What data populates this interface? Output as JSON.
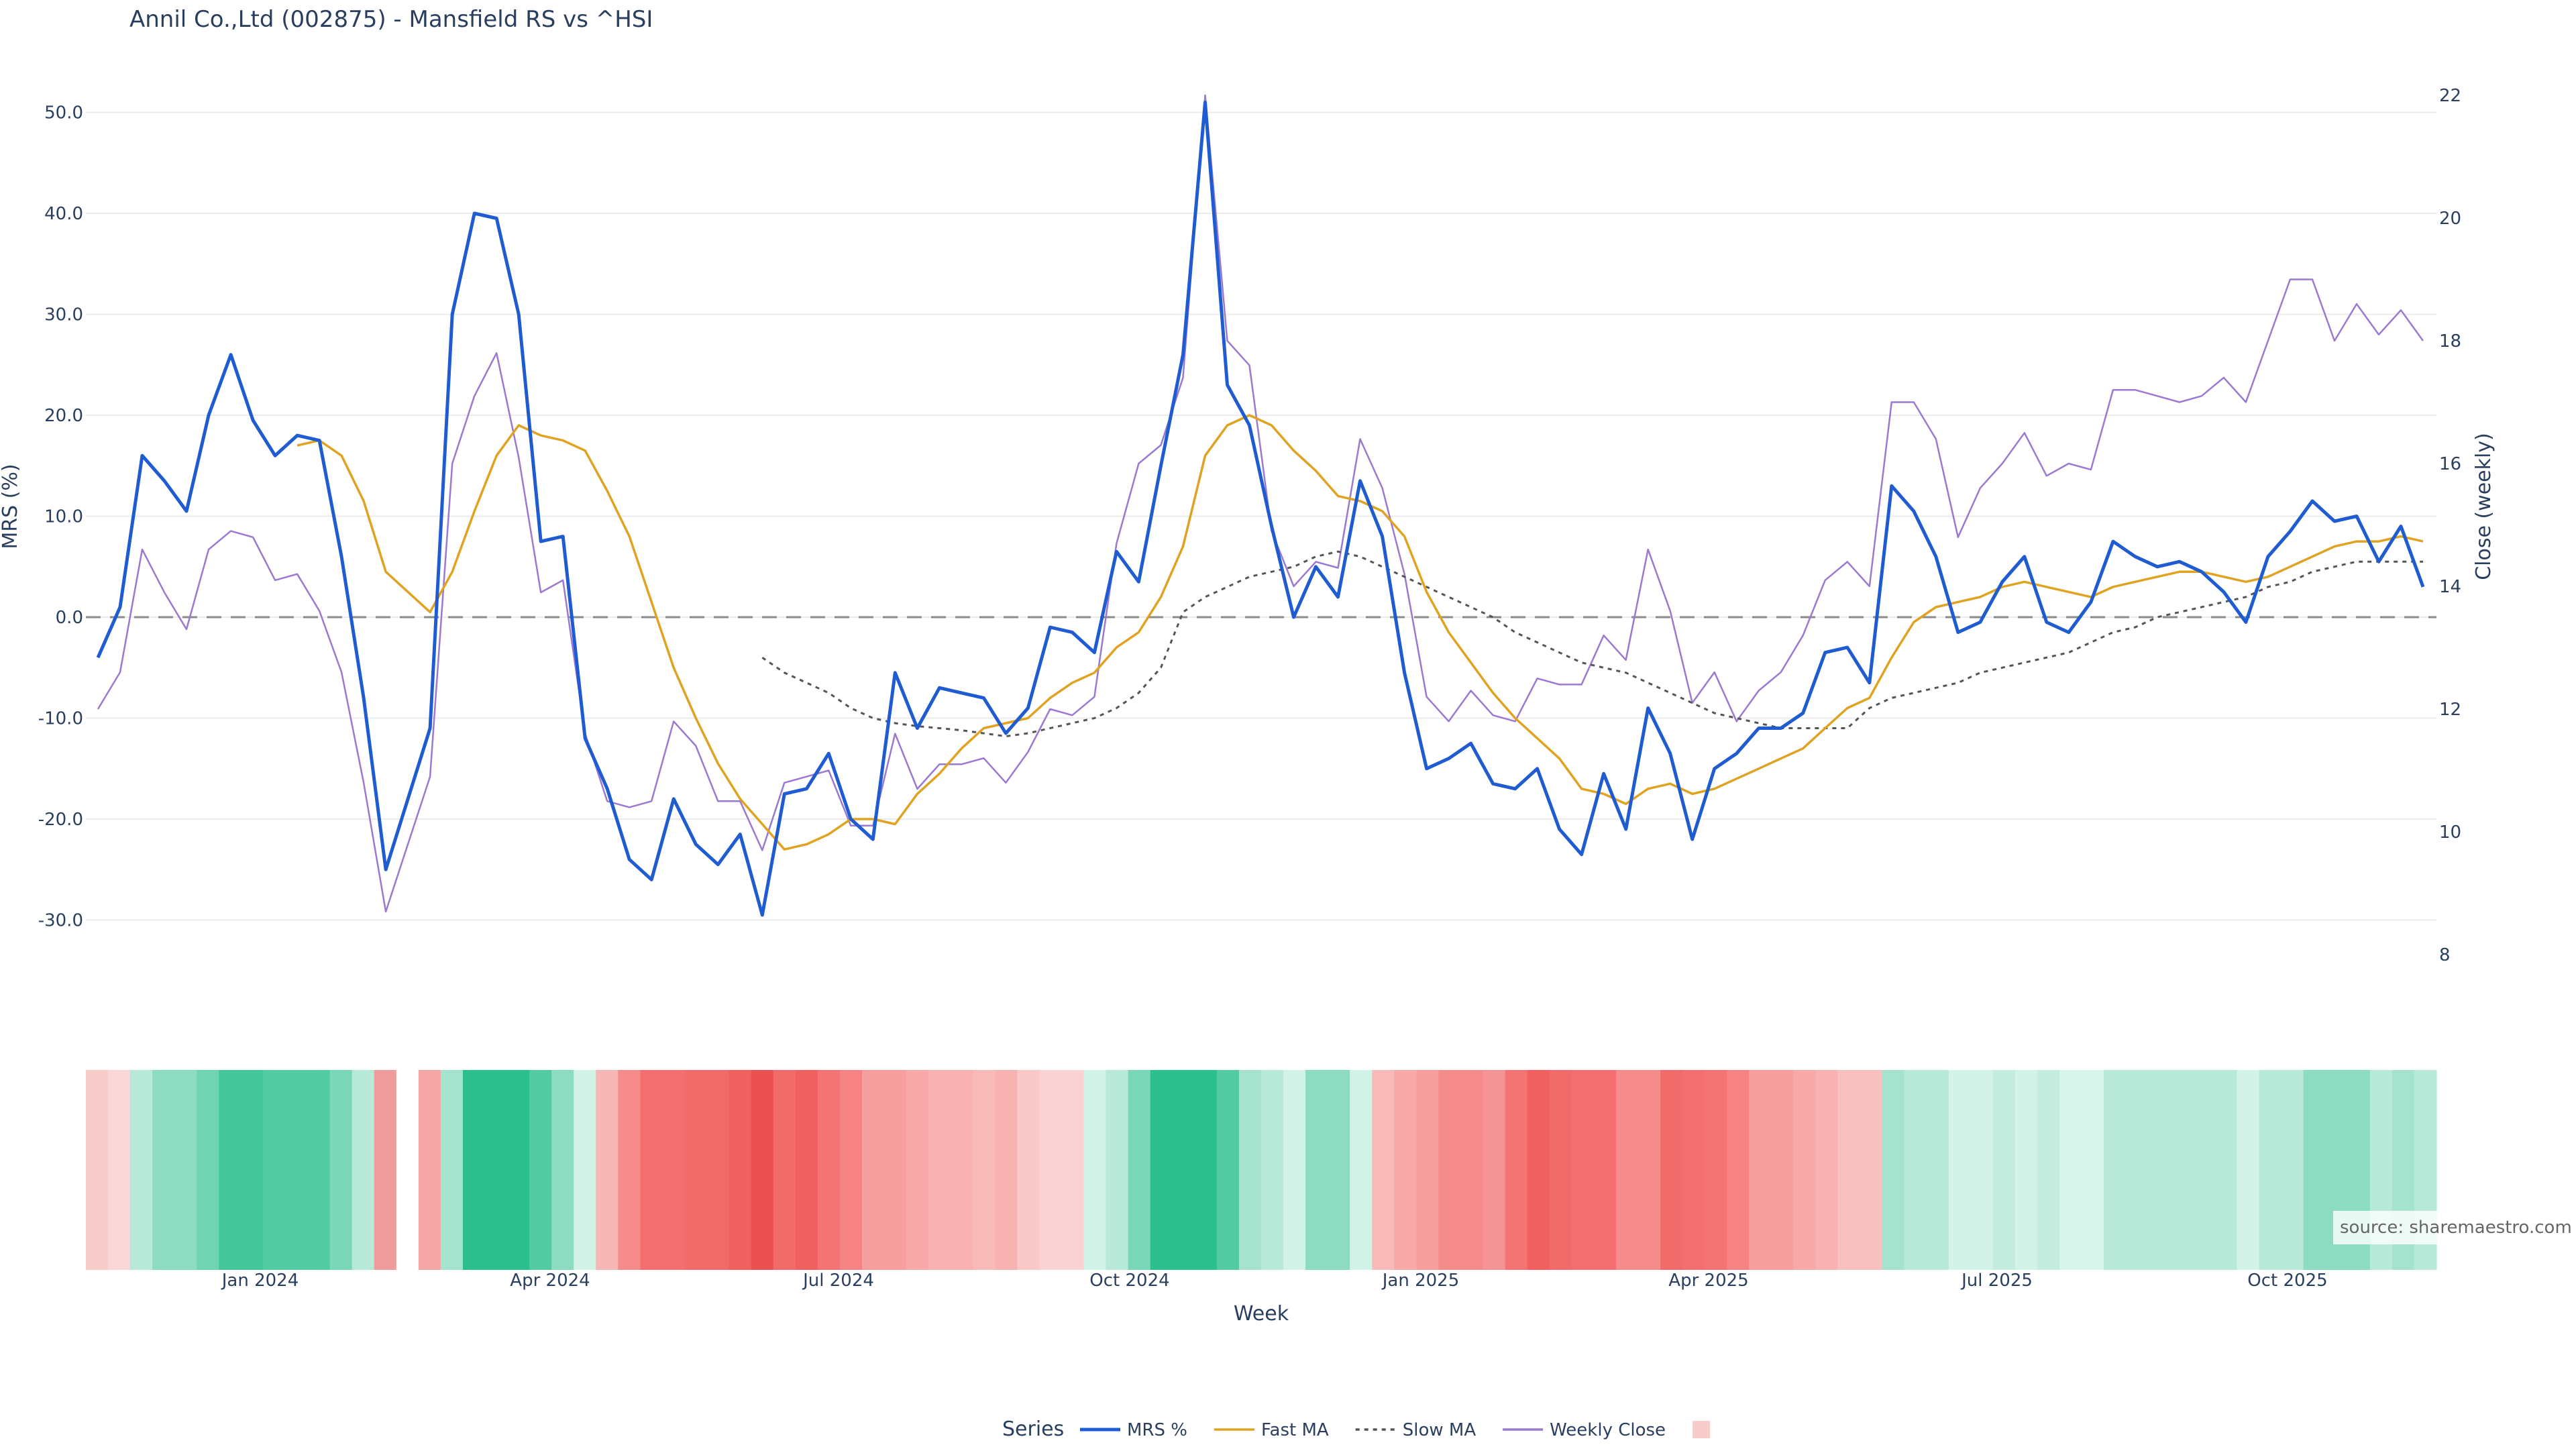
{
  "chart_data": {
    "type": "line",
    "title": "Annil Co.,Ltd (002875) - Mansfield RS vs ^HSI",
    "xlabel": "Week",
    "ylabel_left": "MRS (%)",
    "ylabel_right": "Close (weekly)",
    "ylim_left": [
      -38,
      52
    ],
    "ylim_right": [
      8,
      22
    ],
    "left_ticks": [
      "50.0",
      "40.0",
      "30.0",
      "20.0",
      "10.0",
      "0.0",
      "-10.0",
      "-20.0",
      "-30.0"
    ],
    "right_ticks": [
      "22",
      "20",
      "18",
      "16",
      "14",
      "12",
      "10",
      "8"
    ],
    "x_ticks": [
      "Jan 2024",
      "Apr 2024",
      "Jul 2024",
      "Oct 2024",
      "Jan 2025",
      "Apr 2025",
      "Jul 2025",
      "Oct 2025"
    ],
    "reference_line": 0,
    "legend_title": "Series",
    "series": [
      {
        "name": "MRS %",
        "color": "#1f5bd1",
        "axis": "left",
        "values": [
          -4,
          1,
          16,
          13.5,
          10.5,
          20,
          26,
          19.5,
          16,
          18,
          17.5,
          6,
          -8,
          -25,
          -18,
          -11,
          30,
          40,
          39.5,
          30,
          7.5,
          8,
          -12,
          -17,
          -24,
          -26,
          -18,
          -22.5,
          -24.5,
          -21.5,
          -29.5,
          -17.5,
          -17,
          -13.5,
          -20,
          -22,
          -5.5,
          -11,
          -7,
          -7.5,
          -8,
          -11.5,
          -9,
          -1,
          -1.5,
          -3.5,
          6.5,
          3.5,
          15,
          26,
          51,
          23,
          19,
          9,
          0,
          5,
          2,
          13.5,
          8,
          -5.5,
          -15,
          -14,
          -12.5,
          -16.5,
          -17,
          -15,
          -21,
          -23.5,
          -15.5,
          -21,
          -9,
          -13.5,
          -22,
          -15,
          -13.5,
          -11,
          -11,
          -9.5,
          -3.5,
          -3,
          -6.5,
          13,
          10.5,
          6,
          -1.5,
          -0.5,
          3.5,
          6,
          -0.5,
          -1.5,
          1.5,
          7.5,
          6,
          5,
          5.5,
          4.5,
          2.5,
          -0.5,
          6,
          8.5,
          11.5,
          9.5,
          10,
          5.5,
          9,
          3
        ]
      },
      {
        "name": "Fast MA",
        "color": "#e0a321",
        "axis": "left",
        "values": [
          null,
          null,
          null,
          null,
          null,
          null,
          null,
          null,
          null,
          17,
          17.5,
          16,
          11.5,
          4.5,
          2.5,
          0.5,
          4.5,
          10.5,
          16,
          19,
          18,
          17.5,
          16.5,
          12.5,
          8,
          1.5,
          -5,
          -10,
          -14.5,
          -18,
          -20.5,
          -23,
          -22.5,
          -21.5,
          -20,
          -20,
          -20.5,
          -17.5,
          -15.5,
          -13,
          -11,
          -10.5,
          -10,
          -8,
          -6.5,
          -5.5,
          -3,
          -1.5,
          2,
          7,
          16,
          19,
          20,
          19,
          16.5,
          14.5,
          12,
          11.5,
          10.5,
          8,
          2.5,
          -1.5,
          -4.5,
          -7.5,
          -10,
          -12,
          -14,
          -17,
          -17.5,
          -18.5,
          -17,
          -16.5,
          -17.5,
          -17,
          -16,
          -15,
          -14,
          -13,
          -11,
          -9,
          -8,
          -4,
          -0.5,
          1,
          1.5,
          2,
          3,
          3.5,
          3,
          2.5,
          2,
          3,
          3.5,
          4,
          4.5,
          4.5,
          4,
          3.5,
          4,
          5,
          6,
          7,
          7.5,
          7.5,
          8,
          7.5
        ]
      },
      {
        "name": "Slow MA",
        "color": "#555555",
        "axis": "left",
        "dash": true,
        "values": [
          null,
          null,
          null,
          null,
          null,
          null,
          null,
          null,
          null,
          null,
          null,
          null,
          null,
          null,
          null,
          null,
          null,
          null,
          null,
          null,
          null,
          null,
          null,
          null,
          null,
          null,
          null,
          null,
          null,
          null,
          -4,
          -5.5,
          -6.5,
          -7.5,
          -9,
          -10,
          -10.5,
          -10.8,
          -11,
          -11.2,
          -11.5,
          -11.8,
          -11.5,
          -11,
          -10.5,
          -10,
          -9,
          -7.5,
          -5,
          0.5,
          2,
          3,
          4,
          4.5,
          5,
          6,
          6.5,
          6,
          5,
          4,
          3,
          2,
          1,
          0,
          -1.5,
          -2.5,
          -3.5,
          -4.5,
          -5,
          -5.5,
          -6.5,
          -7.5,
          -8.5,
          -9.5,
          -10,
          -10.5,
          -11,
          -11,
          -11,
          -11,
          -9,
          -8,
          -7.5,
          -7,
          -6.5,
          -5.5,
          -5,
          -4.5,
          -4,
          -3.5,
          -2.5,
          -1.5,
          -1,
          0,
          0.5,
          1,
          1.5,
          2,
          3,
          3.5,
          4.5,
          5,
          5.5,
          5.5,
          5.5,
          5.5
        ]
      },
      {
        "name": "Weekly Close",
        "color": "#9b79d0",
        "axis": "right",
        "values": [
          12,
          12.6,
          14.6,
          13.9,
          13.3,
          14.6,
          14.9,
          14.8,
          14.1,
          14.2,
          13.6,
          12.6,
          10.8,
          8.7,
          9.8,
          10.9,
          16,
          17.1,
          17.8,
          16.1,
          13.9,
          14.1,
          11.6,
          10.5,
          10.4,
          10.5,
          11.8,
          11.4,
          10.5,
          10.5,
          9.7,
          10.8,
          10.9,
          11,
          10.1,
          10.1,
          11.6,
          10.7,
          11.1,
          11.1,
          11.2,
          10.8,
          11.3,
          12,
          11.9,
          12.2,
          14.7,
          16,
          16.3,
          17.4,
          22,
          18,
          17.6,
          14.9,
          14,
          14.4,
          14.3,
          16.4,
          15.6,
          14.2,
          12.2,
          11.8,
          12.3,
          11.9,
          11.8,
          12.5,
          12.4,
          12.4,
          13.2,
          12.8,
          14.6,
          13.6,
          12.1,
          12.6,
          11.8,
          12.3,
          12.6,
          13.2,
          14.1,
          14.4,
          14,
          17,
          17,
          16.4,
          14.8,
          15.6,
          16,
          16.5,
          15.8,
          16,
          15.9,
          17.2,
          17.2,
          17.1,
          17,
          17.1,
          17.4,
          17,
          18,
          19,
          19,
          18,
          18.6,
          18.1,
          18.5,
          18
        ]
      }
    ],
    "heatmap_colors": [
      "#f9cccc",
      "#f9d7d7",
      "#b7e8d8",
      "#8cdcc2",
      "#8cdcc2",
      "#6fd4b2",
      "#45c79b",
      "#45c79b",
      "#52cba3",
      "#52cba3",
      "#52cba3",
      "#7ad7b8",
      "#b7e8d8",
      "#f19c9c",
      "#ffffff",
      "#f4a6a6",
      "#a6e3cf",
      "#2bbf8e",
      "#2bbf8e",
      "#2bbf8e",
      "#52cba3",
      "#8cdcc2",
      "#d3f2e8",
      "#f6b6b6",
      "#f58b8b",
      "#f47070",
      "#f47070",
      "#f26b6b",
      "#f26b6b",
      "#f06060",
      "#ed5050",
      "#f26b6b",
      "#f06060",
      "#f47474",
      "#f58383",
      "#f79e9e",
      "#f79e9e",
      "#f7a9a9",
      "#f8b2b2",
      "#f8b2b2",
      "#f8b9b9",
      "#f8b2b2",
      "#f9c8c8",
      "#f9d3d3",
      "#f9d3d3",
      "#d3f2e8",
      "#b7e8d8",
      "#7ad7b8",
      "#2bbf8e",
      "#2bbf8e",
      "#2bbf8e",
      "#52cba3",
      "#a6e3cf",
      "#b7e8d8",
      "#d3f2e8",
      "#8cdcc2",
      "#8cdcc2",
      "#d3f2e8",
      "#f8b9b9",
      "#f7a9a9",
      "#f79e9e",
      "#f58b8b",
      "#f58b8b",
      "#f49494",
      "#f47474",
      "#f06060",
      "#f26b6b",
      "#f47070",
      "#f47070",
      "#f58b8b",
      "#f58b8b",
      "#f26b6b",
      "#f47070",
      "#f47474",
      "#f58383",
      "#f79e9e",
      "#f79e9e",
      "#f7a9a9",
      "#f8b2b2",
      "#f8c0c0",
      "#f8c0c0",
      "#a6e3cf",
      "#b7e8d8",
      "#b7e8d8",
      "#d3f2e8",
      "#d3f2e8",
      "#c3ecde",
      "#d3f2e8",
      "#c3ecde",
      "#d9f4eb",
      "#d9f4eb",
      "#b7e8d8",
      "#b7e8d8",
      "#b7e8d8",
      "#b7e8d8",
      "#b7e8d8",
      "#b7e8d8",
      "#d3f2e8",
      "#b7e8d8",
      "#b7e8d8",
      "#8cdcc2",
      "#8cdcc2",
      "#8cdcc2",
      "#b7e8d8",
      "#a6e3cf",
      "#b7e8d8"
    ]
  },
  "source_label": "source: sharemaestro.com"
}
